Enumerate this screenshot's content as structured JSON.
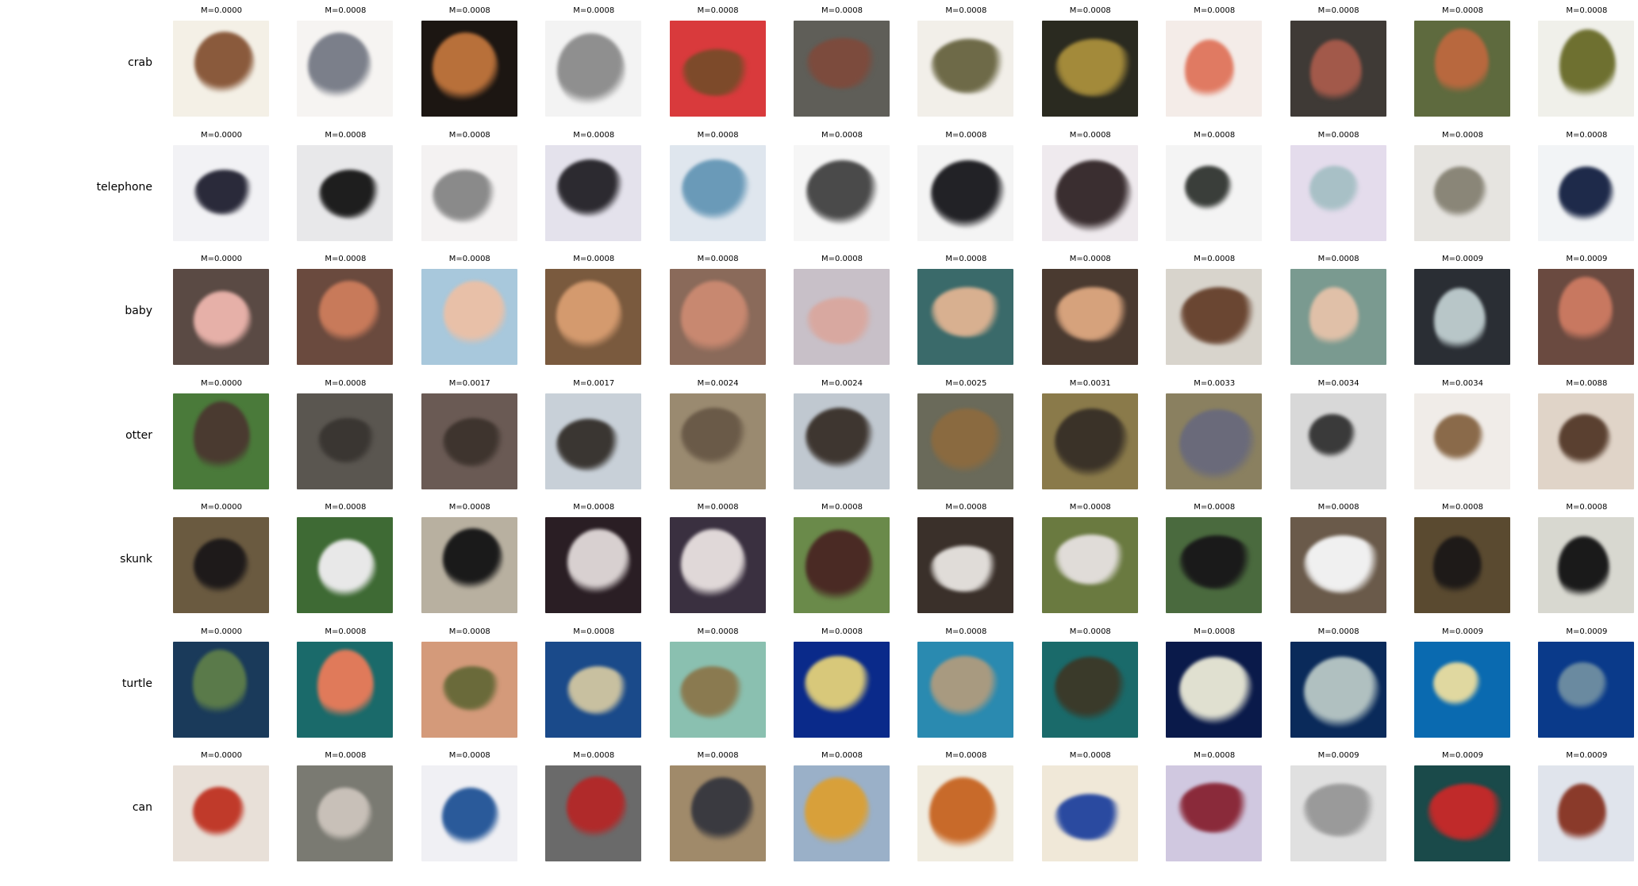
{
  "rows": [
    {
      "label": "crab",
      "captions": [
        "M=0.0000",
        "M=0.0008",
        "M=0.0008",
        "M=0.0008",
        "M=0.0008",
        "M=0.0008",
        "M=0.0008",
        "M=0.0008",
        "M=0.0008",
        "M=0.0008",
        "M=0.0008",
        "M=0.0008"
      ],
      "thumbs": [
        {
          "bg": "#f4f0e6",
          "fg": "#8a5a3c"
        },
        {
          "bg": "#f6f4f2",
          "fg": "#7b7f8a"
        },
        {
          "bg": "#1c1612",
          "fg": "#b8703a"
        },
        {
          "bg": "#f3f3f3",
          "fg": "#8f8f8f"
        },
        {
          "bg": "#d93a3c",
          "fg": "#7d4a2a"
        },
        {
          "bg": "#5f5e58",
          "fg": "#7c4b3d"
        },
        {
          "bg": "#f2efe9",
          "fg": "#6e6a48"
        },
        {
          "bg": "#2a2a20",
          "fg": "#a38a3a"
        },
        {
          "bg": "#f4ece8",
          "fg": "#e07a62"
        },
        {
          "bg": "#3f3a36",
          "fg": "#a2594a"
        },
        {
          "bg": "#5e6a3e",
          "fg": "#b8683e"
        },
        {
          "bg": "#f0f0ea",
          "fg": "#6e7030"
        }
      ]
    },
    {
      "label": "telephone",
      "captions": [
        "M=0.0000",
        "M=0.0008",
        "M=0.0008",
        "M=0.0008",
        "M=0.0008",
        "M=0.0008",
        "M=0.0008",
        "M=0.0008",
        "M=0.0008",
        "M=0.0008",
        "M=0.0008",
        "M=0.0008"
      ],
      "thumbs": [
        {
          "bg": "#f2f2f5",
          "fg": "#2a2a3a"
        },
        {
          "bg": "#e8e8ea",
          "fg": "#1e1e1e"
        },
        {
          "bg": "#f4f2f2",
          "fg": "#8a8a8a"
        },
        {
          "bg": "#e4e2ec",
          "fg": "#2c2a30"
        },
        {
          "bg": "#dfe6ee",
          "fg": "#6a9ab8"
        },
        {
          "bg": "#f6f6f6",
          "fg": "#4a4a4a"
        },
        {
          "bg": "#f4f4f4",
          "fg": "#222226"
        },
        {
          "bg": "#efeaee",
          "fg": "#3a2e30"
        },
        {
          "bg": "#f4f4f4",
          "fg": "#3a3e3a"
        },
        {
          "bg": "#e4dcec",
          "fg": "#a8c0c6"
        },
        {
          "bg": "#e6e4e0",
          "fg": "#8a8678"
        },
        {
          "bg": "#f2f4f6",
          "fg": "#1e2a4a"
        }
      ]
    },
    {
      "label": "baby",
      "captions": [
        "M=0.0000",
        "M=0.0008",
        "M=0.0008",
        "M=0.0008",
        "M=0.0008",
        "M=0.0008",
        "M=0.0008",
        "M=0.0008",
        "M=0.0008",
        "M=0.0008",
        "M=0.0009",
        "M=0.0009"
      ],
      "thumbs": [
        {
          "bg": "#5a4a44",
          "fg": "#e6b0a8"
        },
        {
          "bg": "#6a4a3e",
          "fg": "#c87a5a"
        },
        {
          "bg": "#a8c8dc",
          "fg": "#e8c0a8"
        },
        {
          "bg": "#7a5a3e",
          "fg": "#d49a6e"
        },
        {
          "bg": "#8a6a5a",
          "fg": "#c88870"
        },
        {
          "bg": "#c8c0c8",
          "fg": "#d8a8a0"
        },
        {
          "bg": "#3a6a6a",
          "fg": "#d8b090"
        },
        {
          "bg": "#4a3a30",
          "fg": "#d6a27c"
        },
        {
          "bg": "#d8d4cc",
          "fg": "#6a4632"
        },
        {
          "bg": "#7a9a90",
          "fg": "#e0c0a8"
        },
        {
          "bg": "#2a2e34",
          "fg": "#b8c6c8"
        },
        {
          "bg": "#6a4a40",
          "fg": "#c87860"
        }
      ]
    },
    {
      "label": "otter",
      "captions": [
        "M=0.0000",
        "M=0.0008",
        "M=0.0017",
        "M=0.0017",
        "M=0.0024",
        "M=0.0024",
        "M=0.0025",
        "M=0.0031",
        "M=0.0033",
        "M=0.0034",
        "M=0.0034",
        "M=0.0088"
      ],
      "thumbs": [
        {
          "bg": "#4a7a3a",
          "fg": "#4a3a30"
        },
        {
          "bg": "#5a5650",
          "fg": "#3a3632"
        },
        {
          "bg": "#6a5a54",
          "fg": "#3e342e"
        },
        {
          "bg": "#c8d0d8",
          "fg": "#3a3632"
        },
        {
          "bg": "#9a8a70",
          "fg": "#6a5a48"
        },
        {
          "bg": "#c0c8d0",
          "fg": "#3e3630"
        },
        {
          "bg": "#6a6a5a",
          "fg": "#8a6a40"
        },
        {
          "bg": "#8a7a4a",
          "fg": "#3a3228"
        },
        {
          "bg": "#8a8060",
          "fg": "#6a6a7a"
        },
        {
          "bg": "#d8d8d8",
          "fg": "#3a3a3a"
        },
        {
          "bg": "#f0ece8",
          "fg": "#8a6a4a"
        },
        {
          "bg": "#e0d4c8",
          "fg": "#5a4030"
        }
      ]
    },
    {
      "label": "skunk",
      "captions": [
        "M=0.0000",
        "M=0.0008",
        "M=0.0008",
        "M=0.0008",
        "M=0.0008",
        "M=0.0008",
        "M=0.0008",
        "M=0.0008",
        "M=0.0008",
        "M=0.0008",
        "M=0.0008",
        "M=0.0008"
      ],
      "thumbs": [
        {
          "bg": "#6a5a40",
          "fg": "#1e1a1a"
        },
        {
          "bg": "#3e6a34",
          "fg": "#e8e8e8"
        },
        {
          "bg": "#b8b0a0",
          "fg": "#1a1a1a"
        },
        {
          "bg": "#2a1e24",
          "fg": "#d8d0d0"
        },
        {
          "bg": "#3a3040",
          "fg": "#e0d8d8"
        },
        {
          "bg": "#6a8a4a",
          "fg": "#4a2a24"
        },
        {
          "bg": "#3a302a",
          "fg": "#e0dcd8"
        },
        {
          "bg": "#6a7a40",
          "fg": "#e0dcd8"
        },
        {
          "bg": "#4a6a3e",
          "fg": "#1a1a1a"
        },
        {
          "bg": "#6a5a4a",
          "fg": "#f0f0f0"
        },
        {
          "bg": "#5a4a30",
          "fg": "#1e1a18"
        },
        {
          "bg": "#d8d8d0",
          "fg": "#1a1a1a"
        }
      ]
    },
    {
      "label": "turtle",
      "captions": [
        "M=0.0000",
        "M=0.0008",
        "M=0.0008",
        "M=0.0008",
        "M=0.0008",
        "M=0.0008",
        "M=0.0008",
        "M=0.0008",
        "M=0.0008",
        "M=0.0008",
        "M=0.0009",
        "M=0.0009"
      ],
      "thumbs": [
        {
          "bg": "#1a3a5a",
          "fg": "#5a7a4a"
        },
        {
          "bg": "#1a6a6a",
          "fg": "#e07a5a"
        },
        {
          "bg": "#d49a7a",
          "fg": "#6a6a3a"
        },
        {
          "bg": "#1a4a8a",
          "fg": "#c8c0a0"
        },
        {
          "bg": "#8ac0b0",
          "fg": "#8a7a50"
        },
        {
          "bg": "#0a2a8a",
          "fg": "#d8c87a"
        },
        {
          "bg": "#2a8ab0",
          "fg": "#a89a80"
        },
        {
          "bg": "#1a6a6a",
          "fg": "#3a3a2a"
        },
        {
          "bg": "#0a1a4a",
          "fg": "#e0e0d0"
        },
        {
          "bg": "#0a2a5a",
          "fg": "#b0c0c0"
        },
        {
          "bg": "#0a6ab0",
          "fg": "#e0d8a0"
        },
        {
          "bg": "#0a3a8a",
          "fg": "#6a8aa0"
        }
      ]
    },
    {
      "label": "can",
      "captions": [
        "M=0.0000",
        "M=0.0008",
        "M=0.0008",
        "M=0.0008",
        "M=0.0008",
        "M=0.0008",
        "M=0.0008",
        "M=0.0008",
        "M=0.0008",
        "M=0.0009",
        "M=0.0009",
        "M=0.0009"
      ],
      "thumbs": [
        {
          "bg": "#e8e0d8",
          "fg": "#c03a2a"
        },
        {
          "bg": "#7a7a72",
          "fg": "#c8c0b8"
        },
        {
          "bg": "#f0f0f4",
          "fg": "#2a5a9a"
        },
        {
          "bg": "#6a6a6a",
          "fg": "#b02a2a"
        },
        {
          "bg": "#a08a6a",
          "fg": "#3a3a40"
        },
        {
          "bg": "#9ab0c8",
          "fg": "#d8a03a"
        },
        {
          "bg": "#f0ece0",
          "fg": "#c86a2a"
        },
        {
          "bg": "#f0e8d8",
          "fg": "#2a4aa0"
        },
        {
          "bg": "#d0c8e0",
          "fg": "#8a2a3a"
        },
        {
          "bg": "#e0e0e0",
          "fg": "#9a9a9a"
        },
        {
          "bg": "#1a4a4a",
          "fg": "#c02a2a"
        },
        {
          "bg": "#e0e4ec",
          "fg": "#8a3a2a"
        }
      ]
    }
  ]
}
